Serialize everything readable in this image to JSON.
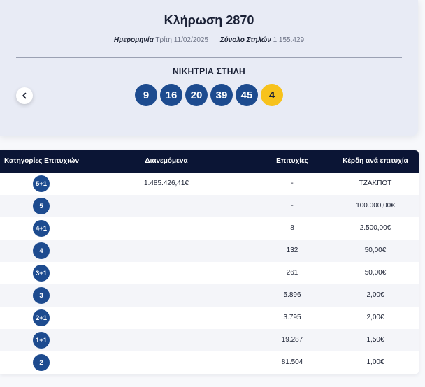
{
  "draw": {
    "title": "Κλήρωση 2870",
    "date_label": "Ημερομηνία",
    "date_value": "Τρίτη 11/02/2025",
    "columns_label": "Σύνολο Στηλών",
    "columns_value": "1.155.429",
    "winning_label": "ΝΙΚΗΤΡΙΑ ΣΤΗΛΗ",
    "numbers": [
      "9",
      "16",
      "20",
      "39",
      "45"
    ],
    "joker": "4"
  },
  "icons": {
    "prev": "chevron-left-icon"
  },
  "colors": {
    "ball": "#1d4b8f",
    "joker": "#f7c21c",
    "header": "#0b1535"
  },
  "table": {
    "headers": {
      "category": "Κατηγορίες Επιτυχιών",
      "distributed": "Διανεμόμενα",
      "winners": "Επιτυχίες",
      "prize": "Κέρδη ανά επιτυχία"
    },
    "rows": [
      {
        "cat": "5+1",
        "distributed": "1.485.426,41€",
        "winners": "-",
        "prize": "ΤΖΑΚΠΟΤ"
      },
      {
        "cat": "5",
        "distributed": "",
        "winners": "-",
        "prize": "100.000,00€"
      },
      {
        "cat": "4+1",
        "distributed": "",
        "winners": "8",
        "prize": "2.500,00€"
      },
      {
        "cat": "4",
        "distributed": "",
        "winners": "132",
        "prize": "50,00€"
      },
      {
        "cat": "3+1",
        "distributed": "",
        "winners": "261",
        "prize": "50,00€"
      },
      {
        "cat": "3",
        "distributed": "",
        "winners": "5.896",
        "prize": "2,00€"
      },
      {
        "cat": "2+1",
        "distributed": "",
        "winners": "3.795",
        "prize": "2,00€"
      },
      {
        "cat": "1+1",
        "distributed": "",
        "winners": "19.287",
        "prize": "1,50€"
      },
      {
        "cat": "2",
        "distributed": "",
        "winners": "81.504",
        "prize": "1,00€"
      }
    ]
  }
}
